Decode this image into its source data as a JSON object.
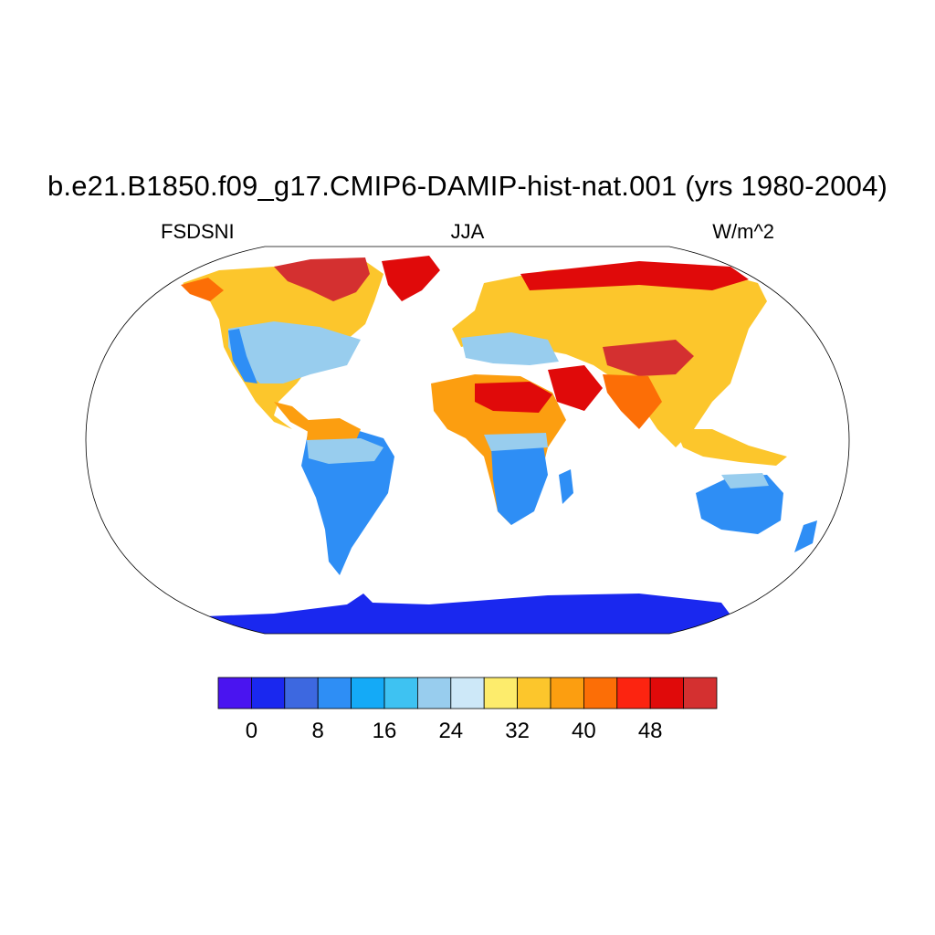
{
  "title": "b.e21.B1850.f09_g17.CMIP6-DAMIP-hist-nat.001 (yrs 1980-2004)",
  "left_label": "FSDSNI",
  "center_label": "JJA",
  "right_label": "W/m^2",
  "colorbar": {
    "colors": [
      "#4a14f0",
      "#1a28ef",
      "#3d68e0",
      "#2e8ef5",
      "#14aaf7",
      "#3ec2f2",
      "#98cdee",
      "#cde8f8",
      "#fdec6c",
      "#fcc62c",
      "#fc9e10",
      "#fc6e06",
      "#fc2410",
      "#e00a0a",
      "#d43030"
    ],
    "tick_labels": [
      "0",
      "8",
      "16",
      "24",
      "32",
      "40",
      "48"
    ]
  }
}
